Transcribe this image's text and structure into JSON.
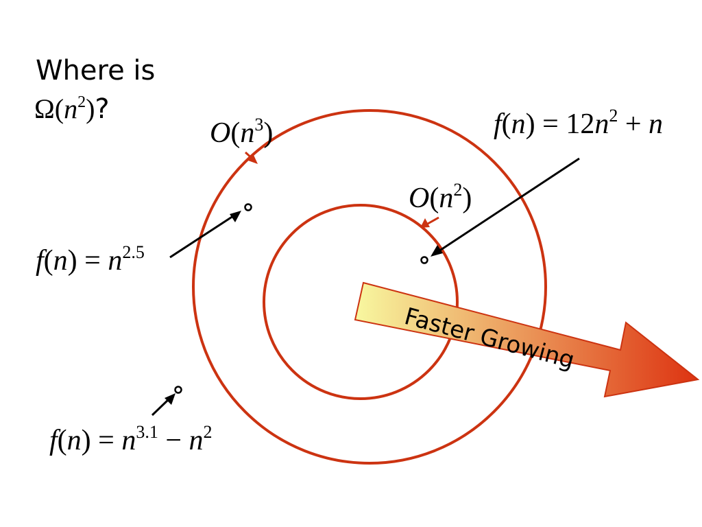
{
  "question": {
    "line1": "Where is",
    "omega": "Ω",
    "open": "(",
    "var": "n",
    "exp": "2",
    "close": ")",
    "qmark": "?"
  },
  "outer_set": {
    "O": "O",
    "open": "(",
    "var": "n",
    "exp": "3",
    "close": ")"
  },
  "inner_set": {
    "O": "O",
    "open": "(",
    "var": "n",
    "exp": "2",
    "close": ")"
  },
  "functions": {
    "f_quadratic": {
      "f": "f",
      "lhs": "(",
      "n": "n",
      "rhs": ") = 12",
      "n2": "n",
      "exp": "2",
      "plus": " + ",
      "n3": "n"
    },
    "f_n25": {
      "f": "f",
      "lhs": "(",
      "n": "n",
      "rhs": ") = ",
      "n2": "n",
      "exp": "2.5"
    },
    "f_n31": {
      "f": "f",
      "lhs": "(",
      "n": "n",
      "rhs": ") = ",
      "n2": "n",
      "exp": "3.1",
      "minus": " − ",
      "n3": "n",
      "exp2": "2"
    }
  },
  "growth_arrow": {
    "label": "Faster Growing",
    "gradient_start": "#f8f8a0",
    "gradient_end": "#dd3311"
  },
  "colors": {
    "circle": "#cc3311",
    "label_arrow": "#cc3311",
    "pointer": "#000000",
    "text": "#000000"
  }
}
